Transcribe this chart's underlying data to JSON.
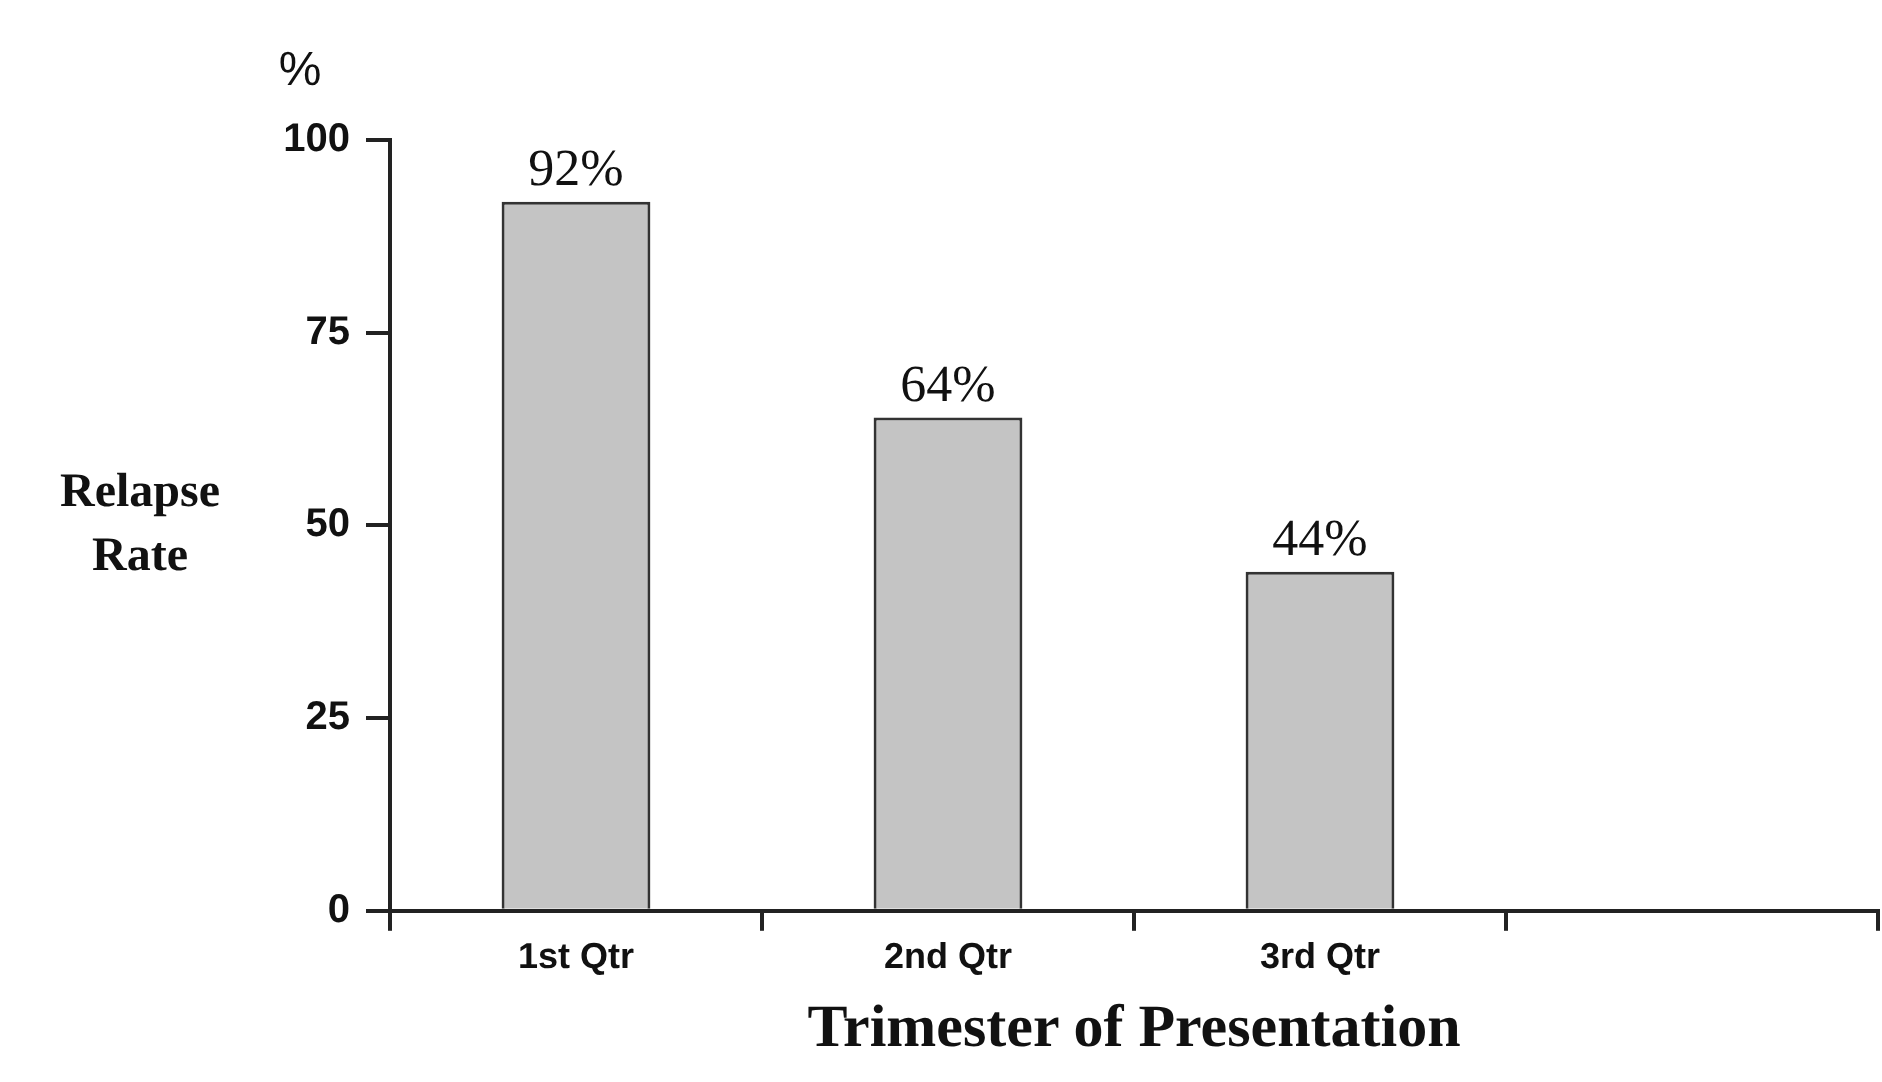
{
  "chart_data": {
    "type": "bar",
    "xlabel": "Trimester of Presentation",
    "ylabel": "Relapse Rate",
    "annotations": [
      "%"
    ],
    "categories": [
      "1st Qtr",
      "2nd Qtr",
      "3rd Qtr",
      null
    ],
    "values": [
      92,
      64,
      44,
      null
    ],
    "value_labels": [
      "92%",
      "64%",
      "44%",
      null
    ],
    "color": "#c4c4c4",
    "ylim": [
      0,
      100
    ],
    "yticks": [
      0,
      25,
      50,
      75,
      100
    ],
    "grid": false,
    "legend": false
  }
}
